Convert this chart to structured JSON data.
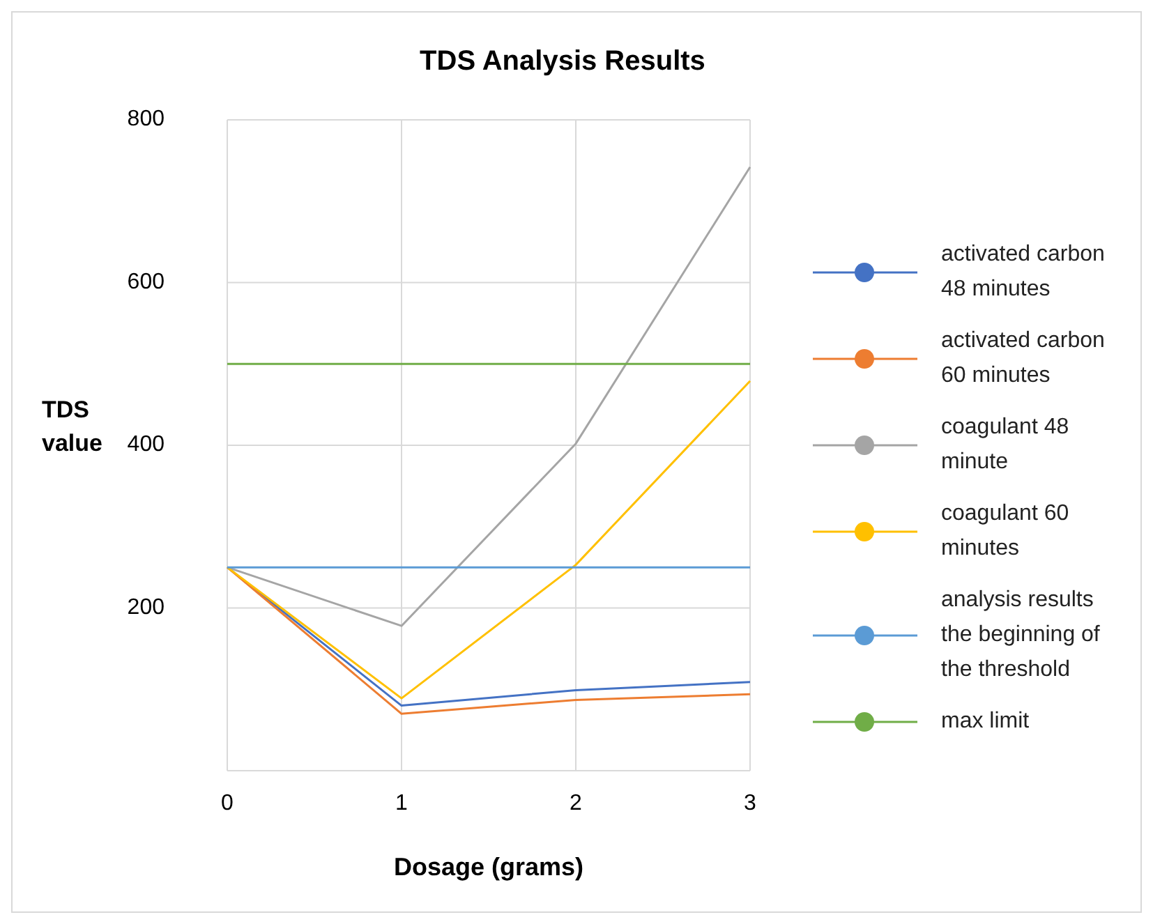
{
  "chart_data": {
    "type": "line",
    "title": "TDS Analysis Results",
    "xlabel": "Dosage (grams)",
    "ylabel": "TDS value",
    "x": [
      0,
      1,
      2,
      3
    ],
    "xlim": [
      0,
      3
    ],
    "xticks": [
      0,
      1,
      2,
      3
    ],
    "ylim": [
      0,
      800
    ],
    "yticks": [
      200,
      400,
      600,
      800
    ],
    "grid": true,
    "legend": "right",
    "marker": "none",
    "line_style": "solid",
    "series": [
      {
        "name": "activated carbon 48 minutes",
        "color": "#4472c4",
        "values": [
          250,
          80,
          99,
          109
        ]
      },
      {
        "name": "activated carbon 60 minutes",
        "color": "#ed7d31",
        "values": [
          250,
          70,
          87,
          94
        ]
      },
      {
        "name": "coagulant 48 minute",
        "color": "#a5a5a5",
        "values": [
          250,
          178,
          402,
          742
        ]
      },
      {
        "name": "coagulant 60 minutes",
        "color": "#ffc000",
        "values": [
          250,
          89,
          253,
          479
        ]
      },
      {
        "name": "analysis results the beginning of the threshold",
        "color": "#5b9bd5",
        "values": [
          250,
          250,
          250,
          250
        ]
      },
      {
        "name": "max limit",
        "color": "#70ad47",
        "values": [
          500,
          500,
          500,
          500
        ]
      }
    ]
  }
}
